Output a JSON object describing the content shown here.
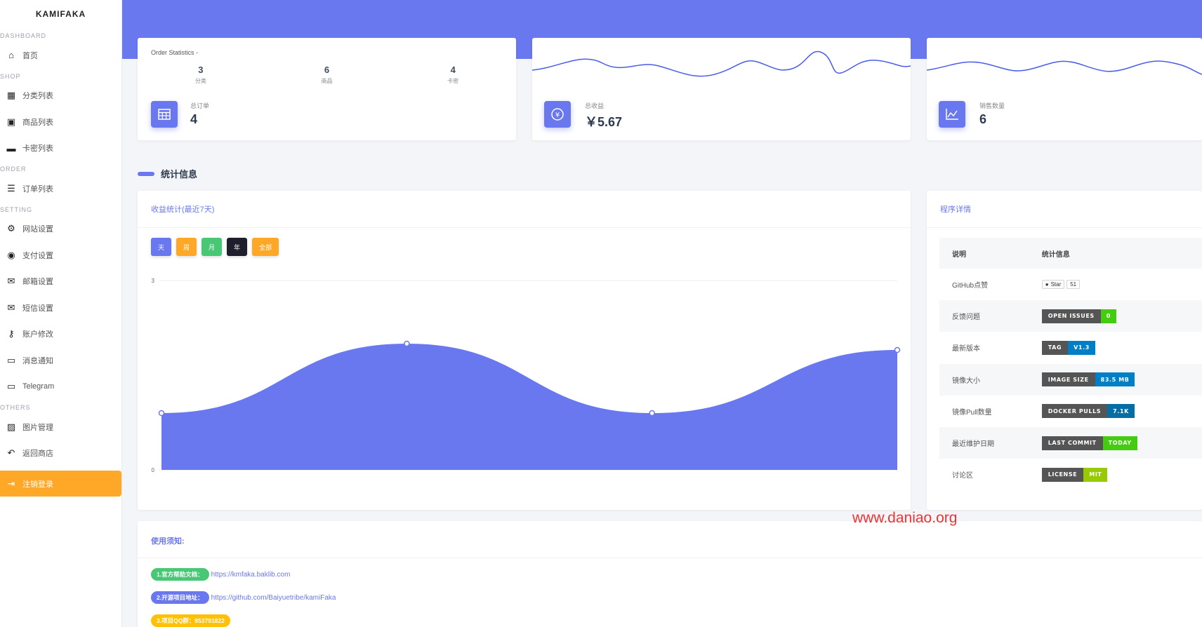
{
  "brand": "KAMIFAKA",
  "sidebar": {
    "sections": [
      {
        "title": "DASHBOARD",
        "items": [
          {
            "label": "首页",
            "icon": "home-icon"
          }
        ]
      },
      {
        "title": "SHOP",
        "items": [
          {
            "label": "分类列表",
            "icon": "grid-icon"
          },
          {
            "label": "商品列表",
            "icon": "ticket-icon"
          },
          {
            "label": "卡密列表",
            "icon": "card-icon"
          }
        ]
      },
      {
        "title": "ORDER",
        "items": [
          {
            "label": "订单列表",
            "icon": "list-icon"
          }
        ]
      },
      {
        "title": "SETTING",
        "items": [
          {
            "label": "网站设置",
            "icon": "gear-icon"
          },
          {
            "label": "支付设置",
            "icon": "user-circle-icon"
          },
          {
            "label": "邮箱设置",
            "icon": "envelope-open-icon"
          },
          {
            "label": "短信设置",
            "icon": "envelope-icon"
          },
          {
            "label": "账户修改",
            "icon": "key-icon"
          },
          {
            "label": "消息通知",
            "icon": "comment-icon"
          },
          {
            "label": "Telegram",
            "icon": "comment-icon"
          }
        ]
      },
      {
        "title": "OTHERS",
        "items": [
          {
            "label": "图片管理",
            "icon": "image-icon"
          },
          {
            "label": "返回商店",
            "icon": "reply-icon"
          },
          {
            "label": "注销登录",
            "icon": "logout-icon",
            "active": true
          }
        ]
      }
    ]
  },
  "order_stats": {
    "title": "Order Statistics -",
    "items": [
      {
        "value": "3",
        "label": "分类"
      },
      {
        "value": "6",
        "label": "商品"
      },
      {
        "value": "4",
        "label": "卡密"
      }
    ],
    "metric_label": "总订单",
    "metric_value": "4"
  },
  "revenue_card": {
    "label": "总收益",
    "value": "￥5.67"
  },
  "sales_card": {
    "label": "销售数量",
    "value": "6"
  },
  "section_heading": "统计信息",
  "income_chart": {
    "title": "收益统计(最近7天)",
    "buttons": [
      {
        "label": "天",
        "color": "#6a78ef"
      },
      {
        "label": "周",
        "color": "#ffa726"
      },
      {
        "label": "月",
        "color": "#48c774"
      },
      {
        "label": "年",
        "color": "#1e1e2d"
      },
      {
        "label": "全部",
        "color": "#ffa726"
      }
    ]
  },
  "chart_data": {
    "type": "area",
    "title": "收益统计(最近7天)",
    "y_ticks": [
      "3",
      "0"
    ],
    "ylim": [
      0,
      3
    ],
    "x": [
      0,
      1,
      2,
      3
    ],
    "values": [
      0.9,
      2.0,
      0.9,
      1.9
    ],
    "fill_color": "#6a78ef",
    "grid": true
  },
  "details": {
    "title": "程序详情",
    "headers": [
      "说明",
      "统计信息"
    ],
    "rows": [
      {
        "label": "GitHub点赞",
        "type": "github",
        "star": "Star",
        "count": "51"
      },
      {
        "label": "反馈问题",
        "left": "OPEN ISSUES",
        "right": "0",
        "color": "#4c1"
      },
      {
        "label": "最新版本",
        "left": "TAG",
        "right": "V1.3",
        "color": "#007ec6"
      },
      {
        "label": "镜像大小",
        "left": "IMAGE SIZE",
        "right": "83.5 MB",
        "color": "#007ec6"
      },
      {
        "label": "镜像Pull数量",
        "left": "DOCKER PULLS",
        "right": "7.1K",
        "color": "#066da5"
      },
      {
        "label": "最近维护日期",
        "left": "LAST COMMIT",
        "right": "TODAY",
        "color": "#4c1"
      },
      {
        "label": "讨论区",
        "left": "LICENSE",
        "right": "MIT",
        "color": "#97ca00"
      }
    ]
  },
  "notice": {
    "title": "使用须知:",
    "items": [
      {
        "tag": "1.官方帮助文档：",
        "link": "https://kmfaka.baklib.com",
        "color": "#48c774"
      },
      {
        "tag": "2.开源项目地址：",
        "link": "https://github.com/Baiyuetribe/kamiFaka",
        "color": "#6a78ef"
      },
      {
        "tag": "3.项目QQ群：853791822",
        "link": "",
        "color": "#ffc107"
      }
    ]
  },
  "watermark": "www.daniao.org"
}
